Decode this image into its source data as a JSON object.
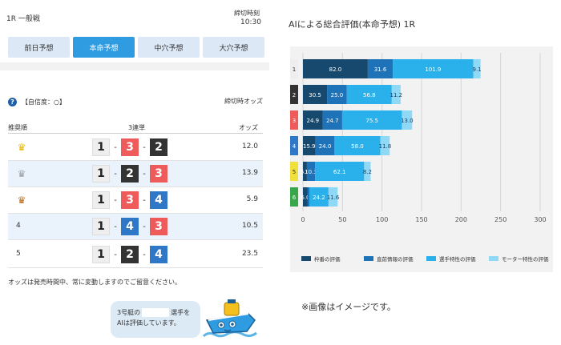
{
  "header": {
    "race": "1R 一般戦",
    "deadline_label": "締切時刻",
    "deadline_time": "10:30"
  },
  "tabs": [
    {
      "label": "前日予想",
      "active": false
    },
    {
      "label": "本命予想",
      "active": true
    },
    {
      "label": "中穴予想",
      "active": false
    },
    {
      "label": "大穴予想",
      "active": false
    }
  ],
  "confidence": {
    "icon": "question-icon",
    "text": "【自信度：○】",
    "odds_at_close": "締切時オッズ"
  },
  "table": {
    "headers": {
      "rank": "推奨順",
      "combo": "3連単",
      "odds": "オッズ"
    },
    "rows": [
      {
        "rank": "",
        "crown": "gold",
        "combo": [
          "1",
          "3",
          "2"
        ],
        "odds": "12.0"
      },
      {
        "rank": "",
        "crown": "silver",
        "combo": [
          "1",
          "2",
          "3"
        ],
        "odds": "13.9"
      },
      {
        "rank": "",
        "crown": "bronze",
        "combo": [
          "1",
          "3",
          "4"
        ],
        "odds": "5.9"
      },
      {
        "rank": "4",
        "crown": "",
        "combo": [
          "1",
          "4",
          "3"
        ],
        "odds": "10.5"
      },
      {
        "rank": "5",
        "crown": "",
        "combo": [
          "1",
          "2",
          "4"
        ],
        "odds": "23.5"
      }
    ]
  },
  "note": "オッズは発売時間中、常に変動しますのでご留意ください。",
  "bubble": {
    "line1_pre": "3号艇の",
    "line1_post": "選手を",
    "line2": "AIは評価しています。"
  },
  "boat_colors": {
    "1": "#eeeeee",
    "2": "#333333",
    "3": "#ef5b5b",
    "4": "#2f78c8",
    "5": "#f0e03c",
    "6": "#3aa64a"
  },
  "chart_title": "AIによる総合評価(本命予想) 1R",
  "caption": "※画像はイメージです。",
  "chart_data": {
    "type": "bar",
    "orientation": "horizontal",
    "stacked": true,
    "categories": [
      "1",
      "2",
      "3",
      "4",
      "5",
      "6"
    ],
    "category_colors": [
      "#eeeeee",
      "#333333",
      "#ef5b5b",
      "#2f78c8",
      "#f0e03c",
      "#3aa64a"
    ],
    "series": [
      {
        "name": "枠番の評価",
        "color": "#17496e",
        "values": [
          82.0,
          30.5,
          24.9,
          15.9,
          5.0,
          6.0
        ]
      },
      {
        "name": "直前情報の評価",
        "color": "#1d72b8",
        "values": [
          31.6,
          25.0,
          24.7,
          24.0,
          10.3,
          2.1
        ]
      },
      {
        "name": "選手特性の評価",
        "color": "#2ab0ea",
        "values": [
          101.9,
          56.8,
          75.5,
          58.0,
          62.1,
          24.2
        ]
      },
      {
        "name": "モーター特性の評価",
        "color": "#8fd8f6",
        "values": [
          9.1,
          11.2,
          13.0,
          11.8,
          8.2,
          11.6
        ]
      }
    ],
    "value_labels": [
      [
        "82.0",
        "31.6",
        "101.9",
        "9.1"
      ],
      [
        "30.5",
        "25.0",
        "56.8",
        "11.2"
      ],
      [
        "24.9",
        "24.7",
        "75.5",
        "13.0"
      ],
      [
        "15.9",
        "24.0",
        "58.0",
        "11.8"
      ],
      [
        "5.0",
        "10.3",
        "62.1",
        "8.2"
      ],
      [
        "6.0",
        "",
        "24.2",
        "11.6"
      ]
    ],
    "xlim": [
      0,
      300
    ],
    "xticks": [
      "0",
      "50",
      "100",
      "150",
      "200",
      "250",
      "300"
    ],
    "grid": true,
    "legend_position": "bottom"
  }
}
